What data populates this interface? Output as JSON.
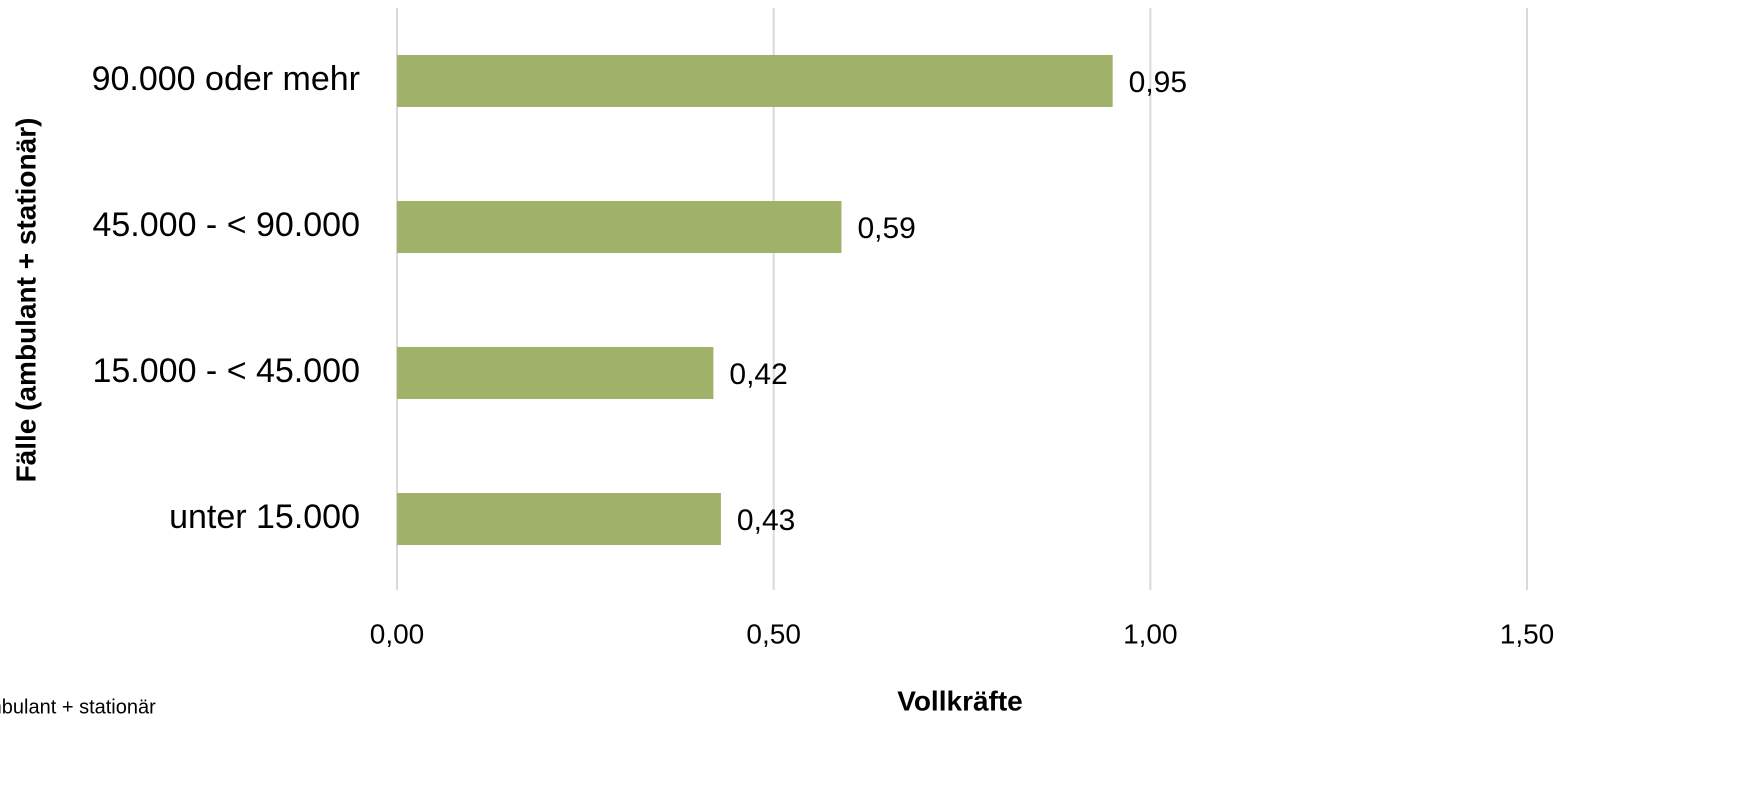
{
  "chart_data": {
    "type": "bar",
    "orientation": "horizontal",
    "x_label": "Vollkräfte",
    "y_label": "Fälle (ambulant + stationär)",
    "categories": [
      "90.000 oder mehr",
      "45.000 - < 90.000",
      "15.000 - < 45.000",
      "unter 15.000"
    ],
    "series": [
      {
        "name": "ambulant + stationär",
        "color": "#a0b16a",
        "values": [
          0.95,
          0.59,
          0.42,
          0.43
        ],
        "value_labels": [
          "0,95",
          "0,59",
          "0,42",
          "0,43"
        ]
      }
    ],
    "xlim": [
      0,
      1.5
    ],
    "xticks": [
      {
        "value": 0,
        "label": "0,00"
      },
      {
        "value": 0.5,
        "label": "0,50"
      },
      {
        "value": 1,
        "label": "1,00"
      },
      {
        "value": 1.5,
        "label": "1,50"
      }
    ],
    "grid": true
  }
}
